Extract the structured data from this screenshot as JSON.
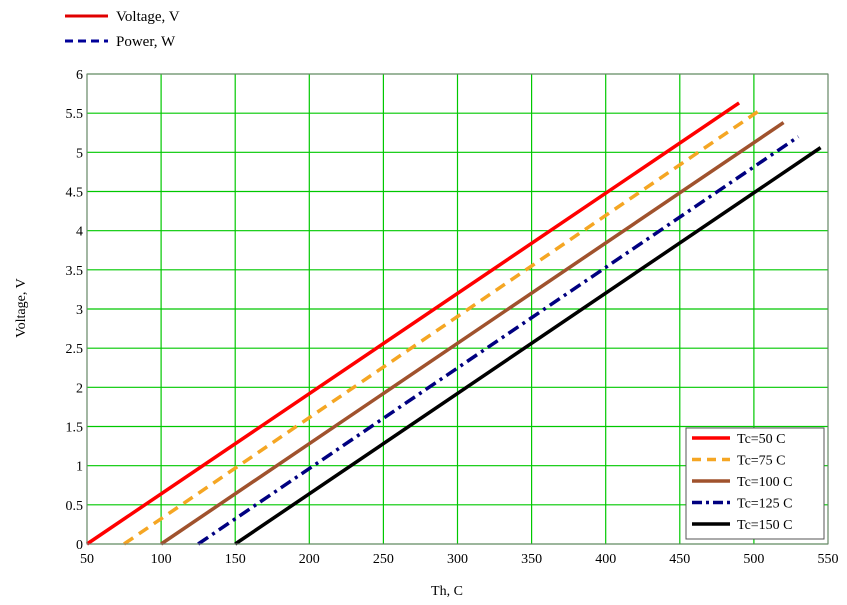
{
  "chart_data": {
    "type": "line",
    "xlabel": "Th, C",
    "ylabel": "Voltage, V",
    "xlim": [
      50,
      550
    ],
    "ylim": [
      0,
      6
    ],
    "x_ticks": [
      50,
      100,
      150,
      200,
      250,
      300,
      350,
      400,
      450,
      500,
      550
    ],
    "y_ticks": [
      0,
      0.5,
      1,
      1.5,
      2,
      2.5,
      3,
      3.5,
      4,
      4.5,
      5,
      5.5,
      6
    ],
    "x_tick_labels": [
      "50",
      "100",
      "150",
      "200",
      "250",
      "300",
      "350",
      "400",
      "450",
      "500",
      "550"
    ],
    "y_tick_labels": [
      "0",
      "0.5",
      "1",
      "1.5",
      "2",
      "2.5",
      "3",
      "3.5",
      "4",
      "4.5",
      "5",
      "5.5",
      "6"
    ],
    "grid": true,
    "grid_color": "#00c800",
    "top_legend": [
      {
        "label": "Voltage, V",
        "color": "#e00000",
        "style": "solid"
      },
      {
        "label": "Power, W",
        "color": "#000099",
        "style": "dashed"
      }
    ],
    "legend_position": "bottom-right",
    "series": [
      {
        "name": "Tc=50 C",
        "color": "#ff0000",
        "style": "solid",
        "x": [
          50,
          490
        ],
        "y": [
          0,
          5.63
        ]
      },
      {
        "name": "Tc=75 C",
        "color": "#f5a623",
        "style": "dashed",
        "x": [
          75,
          505
        ],
        "y": [
          0,
          5.55
        ]
      },
      {
        "name": "Tc=100 C",
        "color": "#a0522d",
        "style": "solid",
        "x": [
          100,
          520
        ],
        "y": [
          0,
          5.38
        ]
      },
      {
        "name": "Tc=125 C",
        "color": "#000080",
        "style": "dashdot",
        "x": [
          125,
          530
        ],
        "y": [
          0,
          5.2
        ]
      },
      {
        "name": "Tc=150 C",
        "color": "#000000",
        "style": "solid",
        "x": [
          150,
          545
        ],
        "y": [
          0,
          5.06
        ]
      }
    ]
  }
}
